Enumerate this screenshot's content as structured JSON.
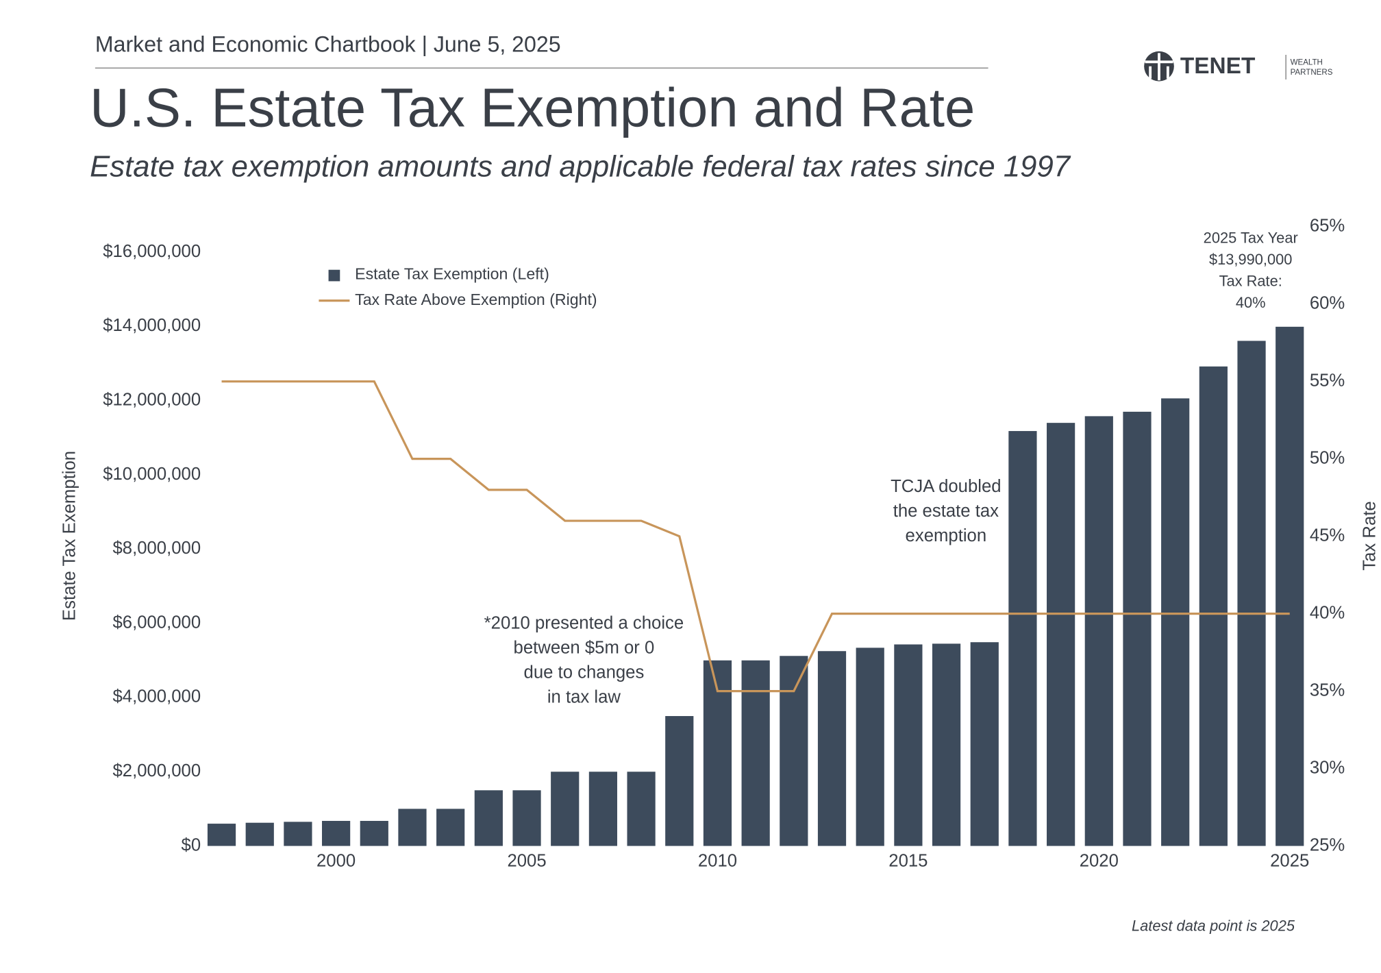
{
  "header": {
    "source": "Market and Economic Chartbook | June 5, 2025",
    "logo": "TENET",
    "logo_sub": [
      "WEALTH",
      "PARTNERS"
    ]
  },
  "chart_data": {
    "type": "bar",
    "title": "U.S. Estate Tax Exemption and Rate",
    "subtitle": "Estate tax exemption amounts and applicable federal tax rates since 1997",
    "x": [
      1997,
      1998,
      1999,
      2000,
      2001,
      2002,
      2003,
      2004,
      2005,
      2006,
      2007,
      2008,
      2009,
      2010,
      2011,
      2012,
      2013,
      2014,
      2015,
      2016,
      2017,
      2018,
      2019,
      2020,
      2021,
      2022,
      2023,
      2024,
      2025
    ],
    "series": [
      {
        "name": "Estate Tax Exemption (Left)",
        "type": "bar",
        "color": "#3d4b5c",
        "values": [
          600000,
          625000,
          650000,
          675000,
          675000,
          1000000,
          1000000,
          1500000,
          1500000,
          2000000,
          2000000,
          2000000,
          3500000,
          5000000,
          5000000,
          5120000,
          5250000,
          5340000,
          5430000,
          5450000,
          5490000,
          11180000,
          11400000,
          11580000,
          11700000,
          12060000,
          12920000,
          13610000,
          13990000
        ]
      },
      {
        "name": "Tax Rate Above Exemption (Right)",
        "type": "line",
        "axis": "y2",
        "color": "#c8955a",
        "values": [
          55,
          55,
          55,
          55,
          55,
          50,
          50,
          48,
          48,
          46,
          46,
          46,
          45,
          35,
          35,
          35,
          40,
          40,
          40,
          40,
          40,
          40,
          40,
          40,
          40,
          40,
          40,
          40,
          40
        ]
      }
    ],
    "xlim": [
      1996.5,
      2025.5
    ],
    "xticks": [
      2000,
      2005,
      2010,
      2015,
      2020,
      2025
    ],
    "ylim": [
      0,
      16000000
    ],
    "yticks": [
      {
        "value": 0,
        "label": "$0"
      },
      {
        "value": 2000000,
        "label": "$2,000,000"
      },
      {
        "value": 4000000,
        "label": "$4,000,000"
      },
      {
        "value": 6000000,
        "label": "$6,000,000"
      },
      {
        "value": 8000000,
        "label": "$8,000,000"
      },
      {
        "value": 10000000,
        "label": "$10,000,000"
      },
      {
        "value": 12000000,
        "label": "$12,000,000"
      },
      {
        "value": 14000000,
        "label": "$14,000,000"
      },
      {
        "value": 16000000,
        "label": "$16,000,000"
      }
    ],
    "y2lim": [
      25,
      65
    ],
    "y2ticks": [
      {
        "value": 25,
        "label": "25%"
      },
      {
        "value": 30,
        "label": "30%"
      },
      {
        "value": 35,
        "label": "35%"
      },
      {
        "value": 40,
        "label": "40%"
      },
      {
        "value": 45,
        "label": "45%"
      },
      {
        "value": 50,
        "label": "50%"
      },
      {
        "value": 55,
        "label": "55%"
      },
      {
        "value": 60,
        "label": "60%"
      },
      {
        "value": 65,
        "label": "65%"
      }
    ],
    "ylabel": "Estate Tax Exemption",
    "y2label": "Tax Rate",
    "annotations": [
      {
        "lines": [
          "*2010 presented a choice",
          "between $5m or 0",
          "due to changes",
          "in tax law"
        ]
      },
      {
        "lines": [
          "TCJA doubled",
          "the estate tax",
          "exemption"
        ]
      },
      {
        "lines": [
          "2025 Tax Year",
          "$13,990,000",
          "Tax Rate:",
          "40%"
        ]
      }
    ],
    "footnote": "Latest data point is 2025",
    "legend": "upper-left"
  }
}
